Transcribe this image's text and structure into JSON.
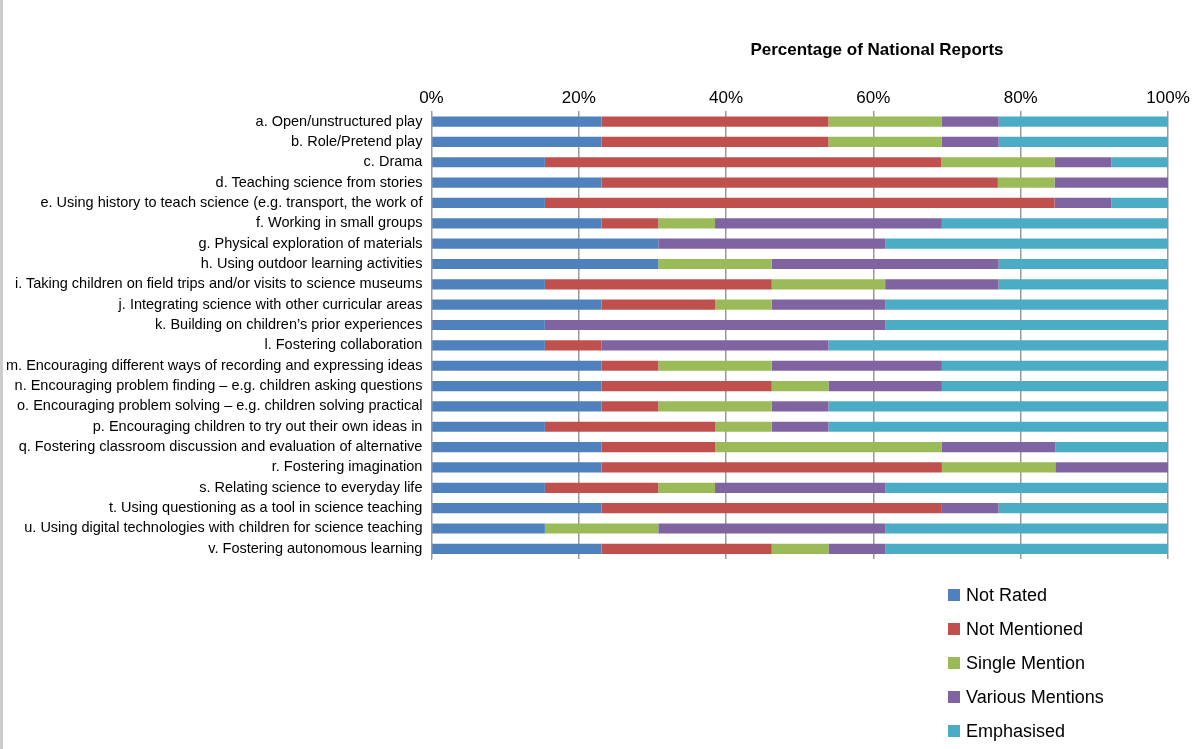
{
  "chart_data": {
    "type": "bar",
    "orientation": "horizontal",
    "stacked": true,
    "xlabel": "Percentage of National Reports",
    "categories": [
      "a. Open/unstructured play",
      "b. Role/Pretend play",
      "c. Drama",
      "d. Teaching science from stories",
      "e. Using history to teach science (e.g. transport, the work of",
      "f. Working in small groups",
      "g. Physical exploration of materials",
      "h. Using outdoor learning activities",
      "i. Taking children on field trips and/or visits to science museums",
      "j. Integrating science with other curricular areas",
      "k. Building on children’s prior experiences",
      "l. Fostering collaboration",
      "m. Encouraging different ways of recording and expressing ideas",
      "n. Encouraging problem finding – e.g. children asking questions",
      "o. Encouraging problem solving – e.g. children solving practical",
      "p. Encouraging children to try out their own ideas in",
      "q. Fostering classroom discussion and evaluation of alternative",
      "r. Fostering imagination",
      "s. Relating science to everyday life",
      "t. Using questioning as a tool in science teaching",
      "u. Using digital technologies with children for science teaching",
      "v. Fostering autonomous learning"
    ],
    "series": [
      {
        "name": "Not Rated",
        "color": "#4f81bd",
        "values": [
          23.1,
          23.1,
          15.4,
          23.1,
          15.4,
          23.1,
          30.8,
          30.8,
          15.4,
          23.1,
          15.4,
          15.4,
          23.1,
          23.1,
          23.1,
          15.4,
          23.1,
          23.1,
          15.4,
          23.1,
          15.4,
          23.1
        ]
      },
      {
        "name": "Not Mentioned",
        "color": "#c0504d",
        "values": [
          30.8,
          30.8,
          53.8,
          53.8,
          69.2,
          7.7,
          0,
          0,
          30.8,
          15.4,
          0,
          7.7,
          7.7,
          23.1,
          7.7,
          23.1,
          15.4,
          46.2,
          15.4,
          46.2,
          0,
          23.1
        ]
      },
      {
        "name": "Single Mention",
        "color": "#9bbb59",
        "values": [
          15.4,
          15.4,
          15.4,
          7.7,
          0,
          7.7,
          0,
          15.4,
          15.4,
          7.7,
          0,
          0,
          15.4,
          7.7,
          15.4,
          7.7,
          30.8,
          15.4,
          7.7,
          0,
          15.4,
          7.7
        ]
      },
      {
        "name": "Various Mentions",
        "color": "#8064a2",
        "values": [
          7.7,
          7.7,
          7.7,
          15.4,
          7.7,
          30.8,
          30.8,
          30.8,
          15.4,
          15.4,
          46.2,
          30.8,
          23.1,
          15.4,
          7.7,
          7.7,
          15.4,
          15.4,
          23.1,
          7.7,
          30.8,
          7.7
        ]
      },
      {
        "name": "Emphasised",
        "color": "#4bacc6",
        "values": [
          23.1,
          23.1,
          7.7,
          0,
          7.7,
          30.8,
          38.5,
          23.1,
          23.1,
          38.5,
          38.5,
          46.2,
          30.8,
          30.8,
          46.2,
          46.2,
          15.4,
          0,
          38.5,
          23.1,
          38.5,
          38.5
        ]
      }
    ],
    "xlim": [
      0,
      100
    ],
    "xticks": [
      {
        "value": 0,
        "label": "0%"
      },
      {
        "value": 20,
        "label": "20%"
      },
      {
        "value": 40,
        "label": "40%"
      },
      {
        "value": 60,
        "label": "60%"
      },
      {
        "value": 80,
        "label": "80%"
      },
      {
        "value": 100,
        "label": "100%"
      }
    ],
    "grid": "x",
    "legend": "bottom right"
  }
}
